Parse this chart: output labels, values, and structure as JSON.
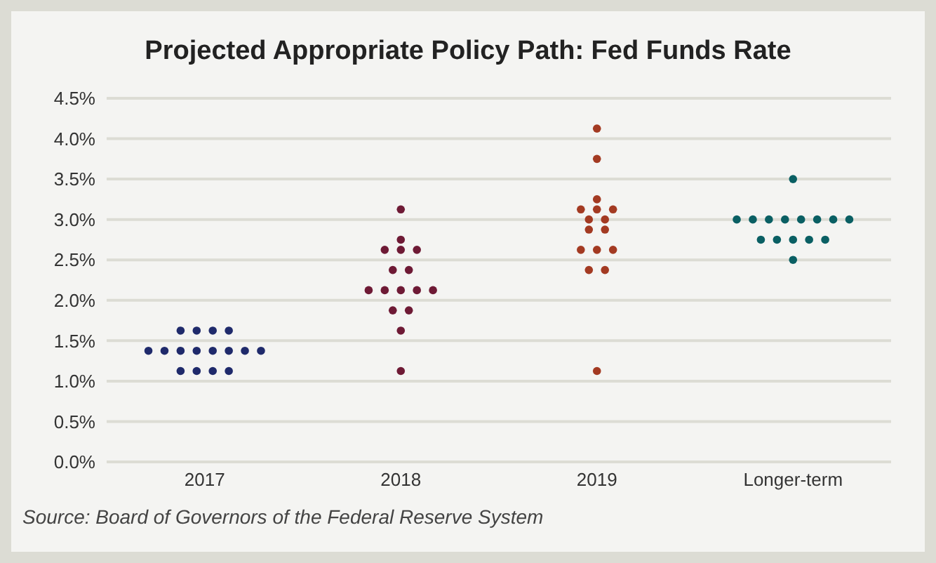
{
  "chart_data": {
    "type": "scatter",
    "title": "Projected Appropriate Policy Path: Fed Funds Rate",
    "categories": [
      "2017",
      "2018",
      "2019",
      "Longer-term"
    ],
    "series": [
      {
        "colors": [
          "#1f2a6b",
          "#6e1a35",
          "#a33a22",
          "#0a5f63"
        ],
        "values": [
          1.625,
          3.125,
          4.125,
          3.5
        ]
      },
      {
        "colors": [
          "#1f2a6b",
          "#6e1a35",
          "#a33a22",
          "#0a5f63"
        ],
        "values": [
          1.625,
          2.75,
          3.75,
          3.0
        ]
      },
      {
        "colors": [
          "#1f2a6b",
          "#6e1a35",
          "#a33a22",
          "#0a5f63"
        ],
        "values": [
          1.625,
          2.625,
          3.25,
          3.0
        ]
      },
      {
        "colors": [
          "#1f2a6b",
          "#6e1a35",
          "#a33a22",
          "#0a5f63"
        ],
        "values": [
          1.625,
          2.625,
          3.125,
          3.0
        ]
      },
      {
        "colors": [
          "#1f2a6b",
          "#6e1a35",
          "#a33a22",
          "#0a5f63"
        ],
        "values": [
          1.375,
          2.625,
          3.125,
          3.0
        ]
      },
      {
        "colors": [
          "#1f2a6b",
          "#6e1a35",
          "#a33a22",
          "#0a5f63"
        ],
        "values": [
          1.375,
          2.375,
          3.125,
          3.0
        ]
      },
      {
        "colors": [
          "#1f2a6b",
          "#6e1a35",
          "#a33a22",
          "#0a5f63"
        ],
        "values": [
          1.375,
          2.375,
          3.0,
          3.0
        ]
      },
      {
        "colors": [
          "#1f2a6b",
          "#6e1a35",
          "#a33a22",
          "#0a5f63"
        ],
        "values": [
          1.375,
          2.125,
          3.0,
          3.0
        ]
      },
      {
        "colors": [
          "#1f2a6b",
          "#6e1a35",
          "#a33a22",
          "#0a5f63"
        ],
        "values": [
          1.375,
          2.125,
          2.875,
          3.0
        ]
      },
      {
        "colors": [
          "#1f2a6b",
          "#6e1a35",
          "#a33a22",
          "#0a5f63"
        ],
        "values": [
          1.375,
          2.125,
          2.875,
          2.75
        ]
      },
      {
        "colors": [
          "#1f2a6b",
          "#6e1a35",
          "#a33a22",
          "#0a5f63"
        ],
        "values": [
          1.375,
          2.125,
          2.625,
          2.75
        ]
      },
      {
        "colors": [
          "#1f2a6b",
          "#6e1a35",
          "#a33a22",
          "#0a5f63"
        ],
        "values": [
          1.375,
          2.125,
          2.625,
          2.75
        ]
      },
      {
        "colors": [
          "#1f2a6b",
          "#6e1a35",
          "#a33a22",
          "#0a5f63"
        ],
        "values": [
          1.125,
          1.875,
          2.625,
          2.75
        ]
      },
      {
        "colors": [
          "#1f2a6b",
          "#6e1a35",
          "#a33a22",
          "#0a5f63"
        ],
        "values": [
          1.125,
          1.875,
          2.375,
          2.75
        ]
      },
      {
        "colors": [
          "#1f2a6b",
          "#6e1a35",
          "#a33a22",
          "#0a5f63"
        ],
        "values": [
          1.125,
          1.625,
          2.375,
          2.5
        ]
      },
      {
        "colors": [
          "#1f2a6b",
          "#6e1a35",
          "#a33a22",
          null
        ],
        "values": [
          1.125,
          1.125,
          1.125,
          null
        ]
      }
    ],
    "ylim": [
      0,
      4.5
    ],
    "yticks": [
      {
        "value": 0,
        "label": "0.0%"
      },
      {
        "value": 0.5,
        "label": "0.5%"
      },
      {
        "value": 1,
        "label": "1.0%"
      },
      {
        "value": 1.5,
        "label": "1.5%"
      },
      {
        "value": 2,
        "label": "2.0%"
      },
      {
        "value": 2.5,
        "label": "2.5%"
      },
      {
        "value": 3,
        "label": "3.0%"
      },
      {
        "value": 3.5,
        "label": "3.5%"
      },
      {
        "value": 4,
        "label": "4.0%"
      },
      {
        "value": 4.5,
        "label": "4.5%"
      }
    ],
    "grid": "y",
    "marker": "circle",
    "legend": false,
    "annotations": [
      "Source: Board of Governors of the Federal Reserve System"
    ]
  }
}
